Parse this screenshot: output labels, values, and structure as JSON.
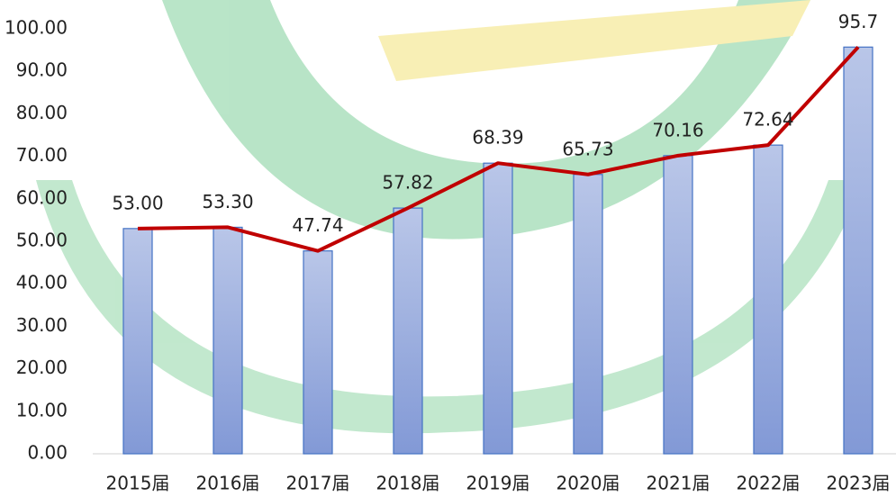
{
  "chart_data": {
    "type": "bar",
    "categories": [
      "2015届",
      "2016届",
      "2017届",
      "2018届",
      "2019届",
      "2020届",
      "2021届",
      "2022届",
      "2023届"
    ],
    "values": [
      53.0,
      53.3,
      47.74,
      57.82,
      68.39,
      65.73,
      70.16,
      72.64,
      95.7
    ],
    "value_labels": [
      "53.00",
      "53.30",
      "47.74",
      "57.82",
      "68.39",
      "65.73",
      "70.16",
      "72.64",
      "95.7"
    ],
    "color": "#9fb3e2",
    "line_color": "#c00000",
    "ylim": [
      0,
      100
    ],
    "yticks": [
      {
        "value": 0,
        "label": "0.00"
      },
      {
        "value": 10,
        "label": "10.00"
      },
      {
        "value": 20,
        "label": "20.00"
      },
      {
        "value": 30,
        "label": "30.00"
      },
      {
        "value": 40,
        "label": "40.00"
      },
      {
        "value": 50,
        "label": "50.00"
      },
      {
        "value": 60,
        "label": "60.00"
      },
      {
        "value": 70,
        "label": "70.00"
      },
      {
        "value": 80,
        "label": "80.00"
      },
      {
        "value": 90,
        "label": "90.00"
      },
      {
        "value": 100,
        "label": "100.00"
      }
    ]
  }
}
